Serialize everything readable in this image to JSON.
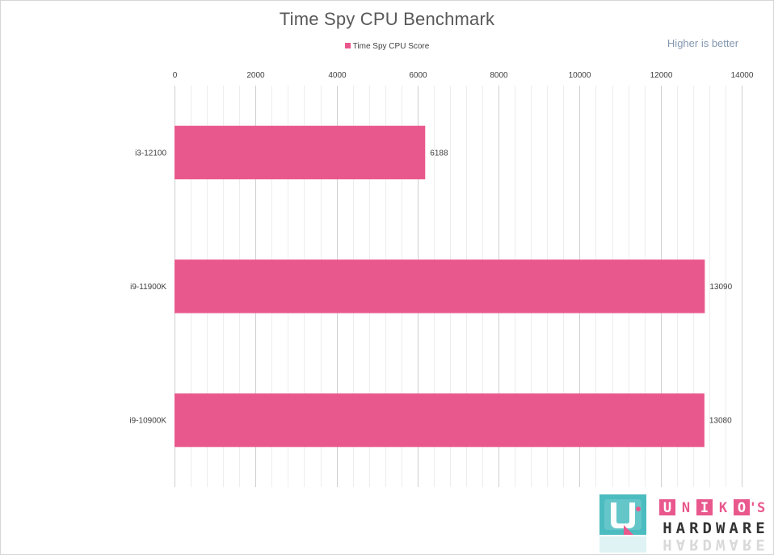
{
  "chart_data": {
    "type": "bar",
    "orientation": "horizontal",
    "title": "Time Spy CPU Benchmark",
    "note": "Higher is better",
    "xlim": [
      0,
      14000
    ],
    "xticks": [
      0,
      2000,
      4000,
      6000,
      8000,
      10000,
      12000,
      14000
    ],
    "x_axis_position": "top",
    "grid": "vertical major and minor gridlines",
    "legend_position": "top-center",
    "categories": [
      "i3-12100",
      "i9-11900K",
      "i9-10900K"
    ],
    "series": [
      {
        "name": "Time Spy CPU Score",
        "color": "#e9588d",
        "values": [
          6188,
          13090,
          13080
        ]
      }
    ],
    "data_labels": [
      "6188",
      "13090",
      "13080"
    ]
  },
  "watermark": {
    "line1": "UNIKO'S",
    "line2": "HARDWARE",
    "colors": {
      "teal": "#4bbcc0",
      "pink": "#e9588d",
      "dark": "#333333"
    }
  }
}
